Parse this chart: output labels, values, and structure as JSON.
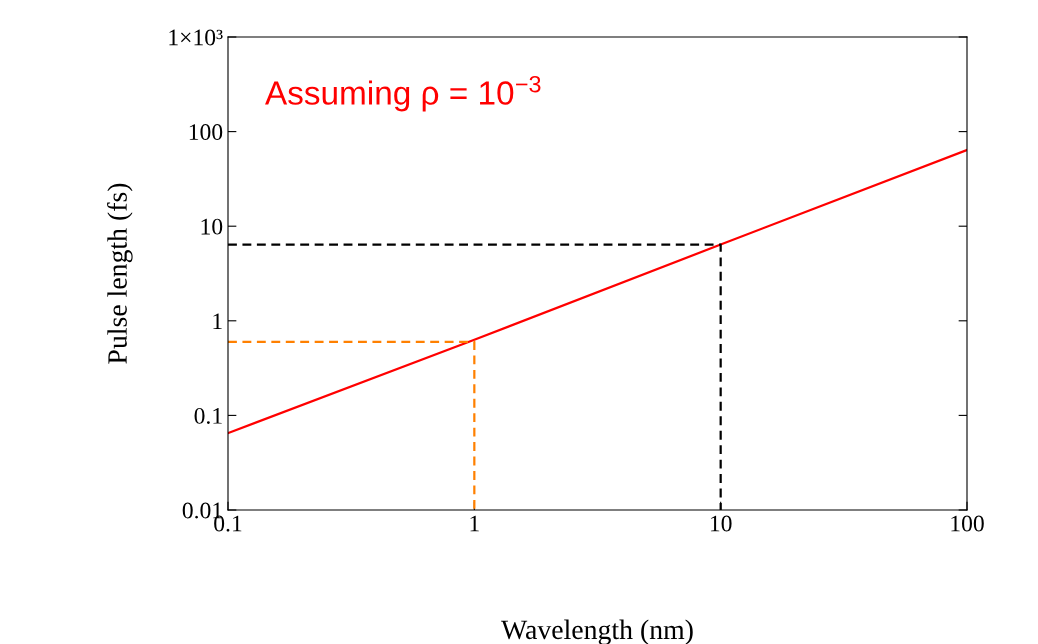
{
  "chart_data": {
    "type": "line",
    "xlabel": "Wavelength (nm)",
    "ylabel": "Pulse length (fs)",
    "log": "xy",
    "grid": false,
    "legend": false,
    "annotations": [
      "Assuming ρ = 10$^{−3}$"
    ],
    "xlim": [
      0.1,
      100
    ],
    "xticks": [
      0.1,
      1,
      10,
      100
    ],
    "ylim": [
      0.01,
      1000
    ],
    "yticks": [
      0.01,
      0.1,
      1,
      10,
      100,
      {
        "value": 1000,
        "label": "1×10³"
      }
    ],
    "series": [
      {
        "color": "#ff0000",
        "line_style": "solid",
        "x": [
          0.1,
          1,
          10,
          100
        ],
        "values": [
          0.065,
          0.63,
          6.4,
          64
        ]
      },
      {
        "color": "#ff8000",
        "line_style": "dashed",
        "x": [
          0.1,
          1,
          1
        ],
        "values": [
          0.6,
          0.6,
          0.01
        ]
      },
      {
        "color": "#000000",
        "line_style": "dashed",
        "x": [
          0.1,
          10,
          10
        ],
        "values": [
          6.4,
          6.4,
          0.01
        ]
      }
    ]
  }
}
